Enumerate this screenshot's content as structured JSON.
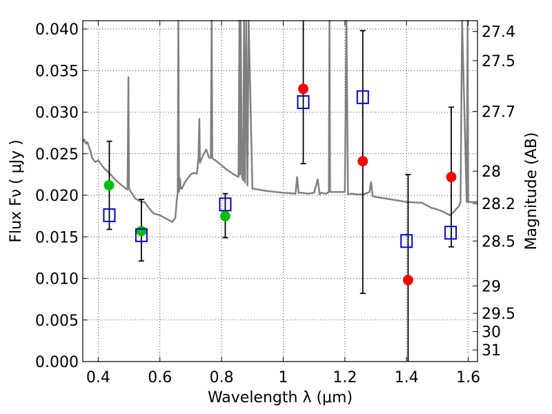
{
  "chart_data": {
    "type": "scatter",
    "xlabel": "Wavelength  λ (μm)",
    "ylabel": "Flux  Fν  ( μJy )",
    "y2label": "Magnitude (AB)",
    "xlim": [
      0.35,
      1.63
    ],
    "ylim": [
      0.0,
      0.041
    ],
    "grid": true,
    "x_ticks": [
      0.4,
      0.6,
      0.8,
      1.0,
      1.2,
      1.4,
      1.6
    ],
    "x_tick_labels": [
      "0.4",
      "0.6",
      "0.8",
      "1",
      "1.2",
      "1.4",
      "1.6"
    ],
    "y_ticks": [
      0.0,
      0.005,
      0.01,
      0.015,
      0.02,
      0.025,
      0.03,
      0.035,
      0.04
    ],
    "y_tick_labels": [
      "0.000",
      "0.005",
      "0.010",
      "0.015",
      "0.020",
      "0.025",
      "0.030",
      "0.035",
      "0.040"
    ],
    "y2_ticks": [
      {
        "label": "27.4",
        "flux": 0.0397
      },
      {
        "label": "27.5",
        "flux": 0.0362
      },
      {
        "label": "27.7",
        "flux": 0.0301
      },
      {
        "label": "28",
        "flux": 0.0229
      },
      {
        "label": "28.2",
        "flux": 0.019
      },
      {
        "label": "28.5",
        "flux": 0.0145
      },
      {
        "label": "29",
        "flux": 0.0091
      },
      {
        "label": "29.5",
        "flux": 0.0058
      },
      {
        "label": "30",
        "flux": 0.0036
      },
      {
        "label": "31",
        "flux": 0.0014
      }
    ],
    "series": [
      {
        "role": "template",
        "color": "#808080",
        "x": [
          0.35,
          0.355,
          0.36,
          0.365,
          0.37,
          0.375,
          0.38,
          0.39,
          0.4,
          0.41,
          0.42,
          0.43,
          0.44,
          0.45,
          0.46,
          0.47,
          0.48,
          0.49,
          0.495,
          0.498,
          0.5,
          0.505,
          0.51,
          0.52,
          0.53,
          0.54,
          0.55,
          0.56,
          0.57,
          0.58,
          0.59,
          0.6,
          0.62,
          0.64,
          0.65,
          0.655,
          0.658,
          0.66,
          0.662,
          0.665,
          0.668,
          0.672,
          0.68,
          0.69,
          0.7,
          0.71,
          0.72,
          0.725,
          0.728,
          0.73,
          0.74,
          0.75,
          0.76,
          0.765,
          0.768,
          0.77,
          0.775,
          0.78,
          0.8,
          0.82,
          0.84,
          0.855,
          0.858,
          0.86,
          0.862,
          0.866,
          0.87,
          0.873,
          0.876,
          0.88,
          0.884,
          0.888,
          0.9,
          0.95,
          1.0,
          1.04,
          1.045,
          1.05,
          1.06,
          1.08,
          1.1,
          1.112,
          1.118,
          1.12,
          1.14,
          1.148,
          1.15,
          1.152,
          1.2,
          1.205,
          1.21,
          1.22,
          1.24,
          1.26,
          1.28,
          1.285,
          1.29,
          1.3,
          1.35,
          1.4,
          1.45,
          1.48,
          1.5,
          1.52,
          1.54,
          1.55,
          1.56,
          1.57,
          1.575,
          1.58,
          1.595,
          1.598,
          1.6,
          1.63
        ],
        "y": [
          0.0264,
          0.0267,
          0.0262,
          0.0264,
          0.0258,
          0.0253,
          0.0245,
          0.024,
          0.0242,
          0.0237,
          0.0232,
          0.0229,
          0.0225,
          0.0221,
          0.0217,
          0.0214,
          0.0211,
          0.0208,
          0.0207,
          0.0342,
          0.0208,
          0.0205,
          0.0202,
          0.0196,
          0.0194,
          0.0192,
          0.0192,
          0.0187,
          0.0182,
          0.0178,
          0.0177,
          0.0176,
          0.0172,
          0.0168,
          0.0173,
          0.0195,
          0.0203,
          0.041,
          0.0204,
          0.022,
          0.0208,
          0.0208,
          0.0215,
          0.022,
          0.0225,
          0.0227,
          0.0226,
          0.0245,
          0.0292,
          0.0239,
          0.0248,
          0.0255,
          0.0245,
          0.0245,
          0.041,
          0.0245,
          0.0243,
          0.0242,
          0.0236,
          0.023,
          0.0225,
          0.0222,
          0.041,
          0.0225,
          0.041,
          0.0222,
          0.0218,
          0.041,
          0.0215,
          0.041,
          0.0212,
          0.041,
          0.0208,
          0.0205,
          0.0203,
          0.0202,
          0.0222,
          0.0203,
          0.0203,
          0.0202,
          0.0203,
          0.0219,
          0.0201,
          0.0203,
          0.0202,
          0.0204,
          0.041,
          0.0204,
          0.0204,
          0.041,
          0.0201,
          0.0202,
          0.0201,
          0.0201,
          0.0204,
          0.0216,
          0.0199,
          0.0198,
          0.0195,
          0.0192,
          0.0191,
          0.0185,
          0.0183,
          0.018,
          0.0176,
          0.0179,
          0.0183,
          0.0187,
          0.0192,
          0.041,
          0.0192,
          0.041,
          0.0192,
          0.0192
        ]
      },
      {
        "role": "green-points",
        "color": "#00c000",
        "x": [
          0.435,
          0.54,
          0.812
        ],
        "y": [
          0.0212,
          0.0157,
          0.0175
        ]
      },
      {
        "role": "red-points",
        "color": "#ff0000",
        "x": [
          1.065,
          1.258,
          1.405,
          1.545
        ],
        "y": [
          0.0328,
          0.0241,
          0.0098,
          0.0222
        ]
      },
      {
        "role": "blue-squares",
        "color": "#0000cc",
        "x": [
          0.436,
          0.54,
          0.812,
          1.065,
          1.258,
          1.4,
          1.543
        ],
        "y": [
          0.0176,
          0.0152,
          0.0189,
          0.0312,
          0.0318,
          0.0145,
          0.0155
        ]
      },
      {
        "role": "errorbars",
        "color": "#000000",
        "x": [
          0.436,
          0.54,
          0.812,
          1.065,
          1.258,
          1.405,
          1.545
        ],
        "ylow": [
          0.0159,
          0.0121,
          0.0149,
          0.0238,
          0.0082,
          0.0,
          0.0138
        ],
        "yhigh": [
          0.0265,
          0.0195,
          0.0202,
          0.041,
          0.0398,
          0.0225,
          0.0306
        ]
      }
    ]
  }
}
